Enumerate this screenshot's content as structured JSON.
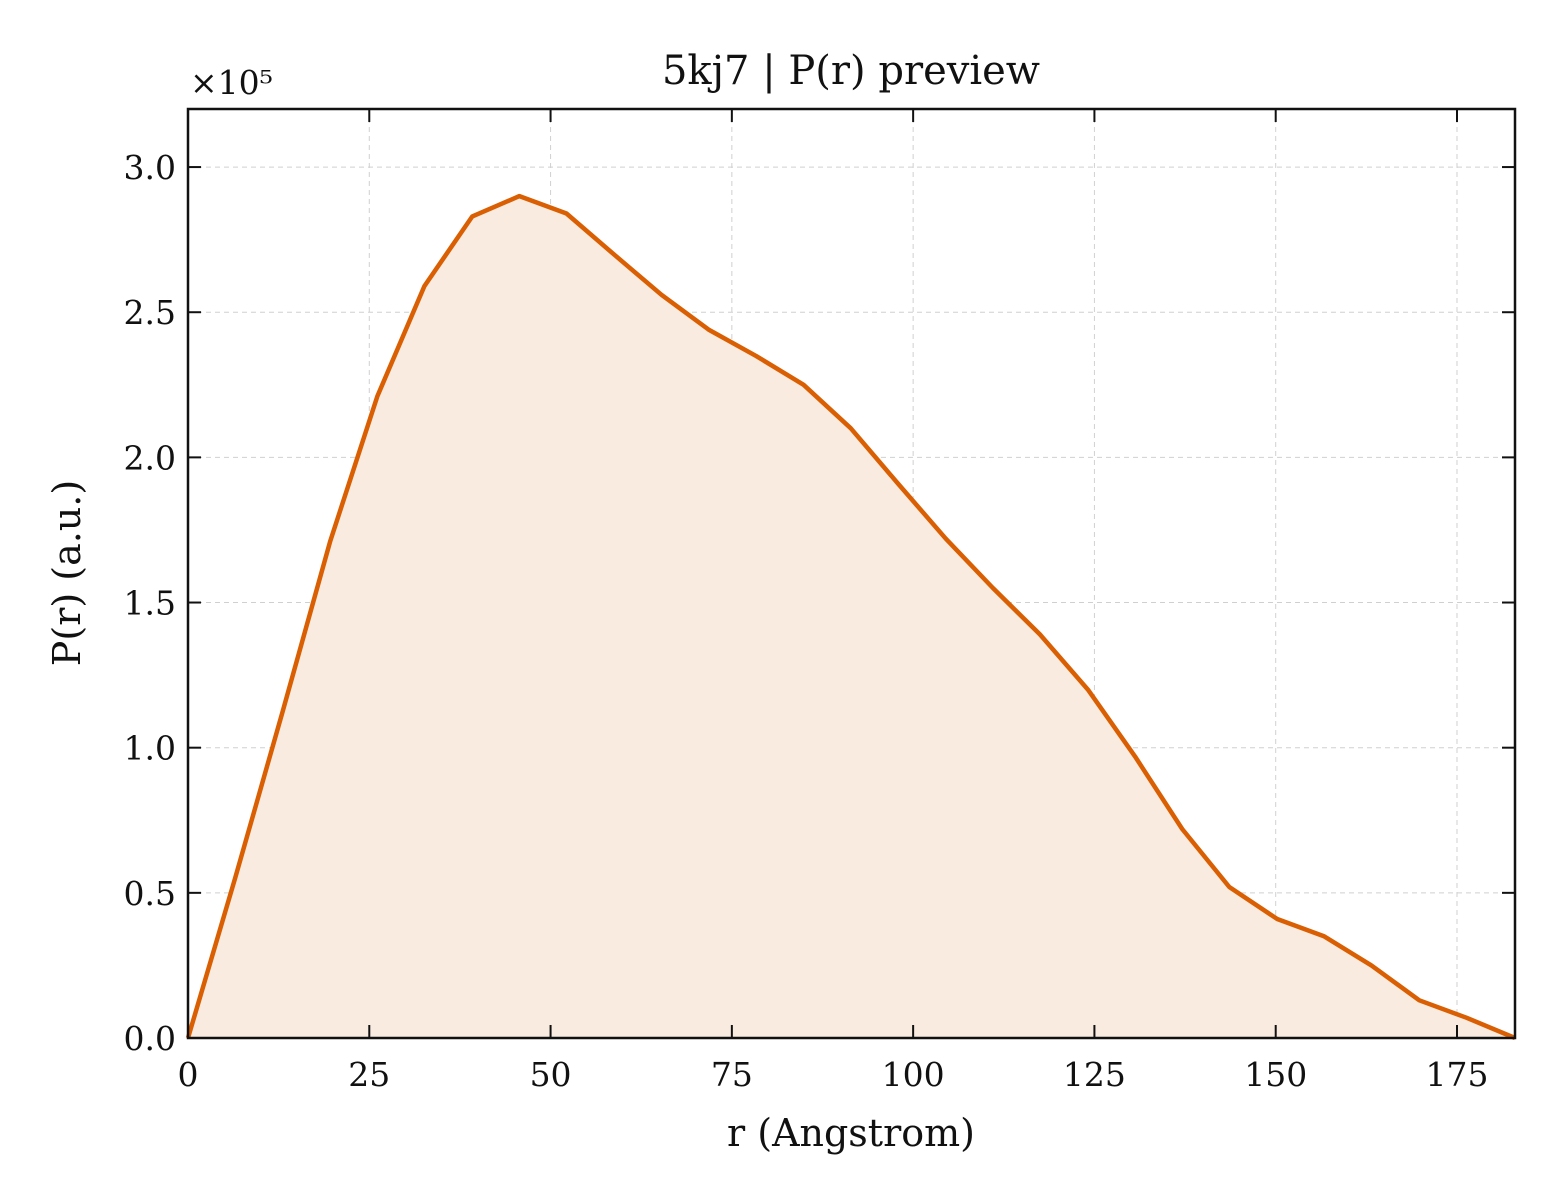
{
  "chart_data": {
    "type": "area",
    "title": "5kj7 | P(r) preview",
    "xlabel": "r (Angstrom)",
    "ylabel": "P(r) (a.u.)",
    "y_offset_label": "×10⁵",
    "xlim": [
      0,
      183
    ],
    "ylim": [
      0,
      3.2
    ],
    "x_ticks": [
      0,
      25,
      50,
      75,
      100,
      125,
      150,
      175
    ],
    "x_tick_labels": [
      "0",
      "25",
      "50",
      "75",
      "100",
      "125",
      "150",
      "175"
    ],
    "y_ticks": [
      0,
      0.5,
      1.0,
      1.5,
      2.0,
      2.5,
      3.0
    ],
    "y_tick_labels": [
      "0.0",
      "0.5",
      "1.0",
      "1.5",
      "2.0",
      "2.5",
      "3.0"
    ],
    "grid": true,
    "line_color": "#d95f02",
    "fill_color": "#f9ebe0",
    "series": [
      {
        "x": [
          0,
          6.5,
          13,
          19.6,
          26.1,
          32.6,
          39.2,
          45.7,
          52.2,
          58.7,
          65.3,
          71.8,
          78.3,
          84.9,
          91.4,
          97.9,
          104.5,
          111,
          117.5,
          124.1,
          130.6,
          137.1,
          143.6,
          150.2,
          156.7,
          163.2,
          169.8,
          176.3,
          183
        ],
        "y": [
          0,
          0.55,
          1.12,
          1.71,
          2.21,
          2.59,
          2.83,
          2.9,
          2.84,
          2.7,
          2.56,
          2.44,
          2.35,
          2.25,
          2.1,
          1.91,
          1.72,
          1.55,
          1.39,
          1.2,
          0.97,
          0.72,
          0.52,
          0.41,
          0.35,
          0.25,
          0.13,
          0.07,
          0.0
        ]
      }
    ]
  }
}
